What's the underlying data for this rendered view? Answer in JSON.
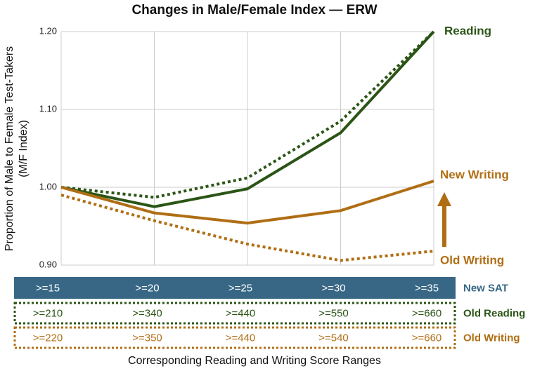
{
  "chart_data": {
    "type": "line",
    "title": "Changes in Male/Female Index — ERW",
    "y_label": [
      "Proportion of Male to Female Test-Takers",
      "(M/F Index)"
    ],
    "x_label": "Corresponding Reading and Writing Score Ranges",
    "ylim": [
      0.9,
      1.2
    ],
    "yticks": [
      {
        "value": 0.9,
        "label": "0.90"
      },
      {
        "value": 1.0,
        "label": "1.00"
      },
      {
        "value": 1.1,
        "label": "1.10"
      },
      {
        "value": 1.2,
        "label": "1.20"
      }
    ],
    "grid": true,
    "series": [
      {
        "name": "Reading",
        "color": "#2b5516",
        "dashed": false,
        "values": [
          1.0,
          0.975,
          0.998,
          1.07,
          1.2
        ]
      },
      {
        "color": "#2b5516",
        "dashed": true,
        "values": [
          1.0,
          0.987,
          1.012,
          1.085,
          1.2
        ]
      },
      {
        "name": "New Writing",
        "color": "#b06e14",
        "dashed": false,
        "values": [
          1.0,
          0.967,
          0.954,
          0.97,
          1.008
        ]
      },
      {
        "name": "Old Writing",
        "color": "#b06e14",
        "dashed": true,
        "values": [
          0.99,
          0.957,
          0.927,
          0.906,
          0.918
        ]
      }
    ],
    "score_rows": [
      {
        "label": "New SAT",
        "color": "#386785",
        "ranges": [
          ">=15",
          ">=20",
          ">=25",
          ">=30",
          ">=35"
        ]
      },
      {
        "label": "Old Reading",
        "color": "#2b5516",
        "ranges": [
          ">=210",
          ">=340",
          ">=440",
          ">=550",
          ">=660"
        ]
      },
      {
        "label": "Old Writing",
        "color": "#b06e14",
        "ranges": [
          ">=220",
          ">=350",
          ">=440",
          ">=540",
          ">=660"
        ]
      }
    ]
  }
}
